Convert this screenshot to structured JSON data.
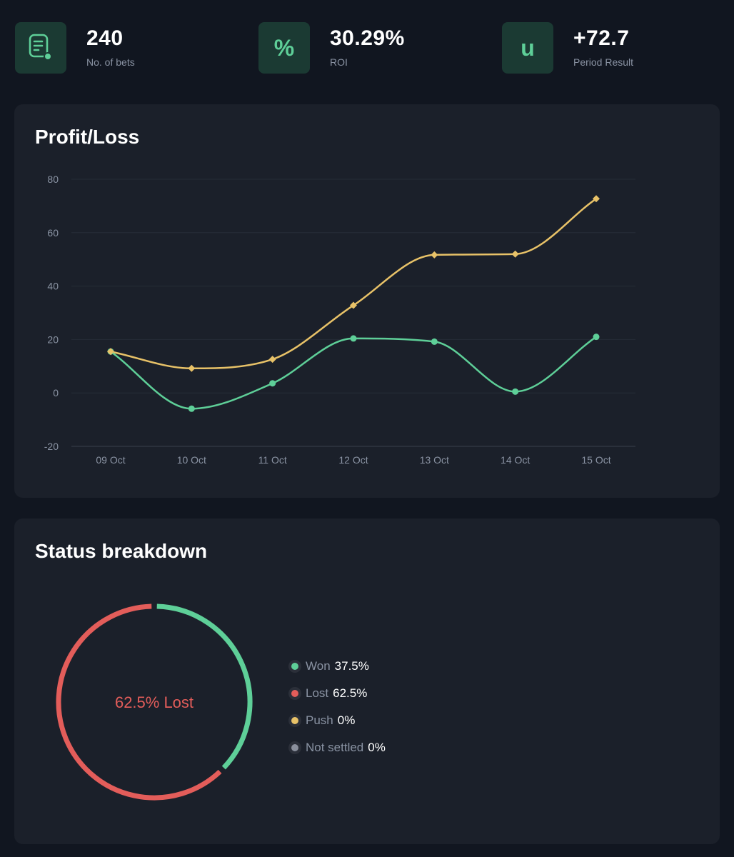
{
  "stats": [
    {
      "value": "240",
      "label": "No. of bets",
      "icon": "document-icon"
    },
    {
      "value": "30.29%",
      "label": "ROI",
      "icon": "percent-icon",
      "glyph": "%"
    },
    {
      "value": "+72.7",
      "label": "Period Result",
      "icon": "unit-icon",
      "glyph": "u"
    }
  ],
  "profit_loss": {
    "title": "Profit/Loss"
  },
  "chart_data": [
    {
      "type": "line",
      "title": "Profit/Loss",
      "xlabel": "",
      "ylabel": "",
      "categories": [
        "09 Oct",
        "10 Oct",
        "11 Oct",
        "12 Oct",
        "13 Oct",
        "14 Oct",
        "15 Oct"
      ],
      "series": [
        {
          "color": "#e8c268",
          "marker": "diamond",
          "values": [
            15.5,
            9.2,
            12.6,
            32.8,
            51.7,
            52.0,
            72.7
          ]
        },
        {
          "color": "#5ecf98",
          "marker": "circle",
          "values": [
            15.5,
            -5.9,
            3.6,
            20.4,
            19.2,
            0.5,
            21.0
          ]
        }
      ],
      "yticks": [
        80,
        60,
        40,
        20,
        0,
        -20
      ],
      "ylim": [
        -20,
        80
      ],
      "grid": true,
      "legend": "none"
    },
    {
      "type": "pie",
      "title": "Status breakdown",
      "center_label": "62.5% Lost",
      "slices": [
        {
          "label": "Won",
          "value": 37.5,
          "value_label": "37.5%",
          "color": "#5ecf98"
        },
        {
          "label": "Lost",
          "value": 62.5,
          "value_label": "62.5%",
          "color": "#e35d5a"
        },
        {
          "label": "Push",
          "value": 0,
          "value_label": "0%",
          "color": "#e8c268"
        },
        {
          "label": "Not settled",
          "value": 0,
          "value_label": "0%",
          "color": "#8a8f9c"
        }
      ],
      "legend": "right"
    }
  ],
  "status_breakdown": {
    "title": "Status breakdown"
  }
}
